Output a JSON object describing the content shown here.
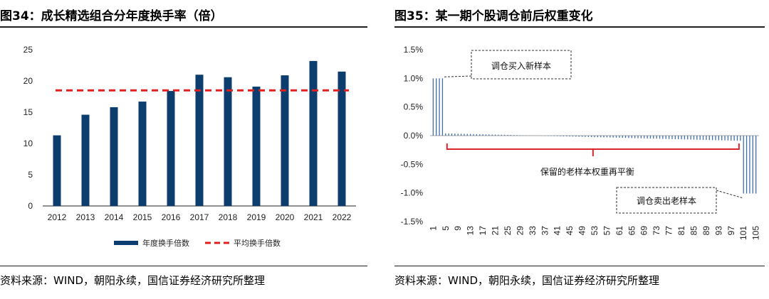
{
  "left_panel": {
    "title": "图34：成长精选组合分年度换手率（倍）",
    "source": "资料来源：WIND，朝阳永续，国信证券经济研究所整理"
  },
  "right_panel": {
    "title": "图35：某一期个股调仓前后权重变化",
    "source": "资料来源：WIND，朝阳永续，国信证券经济研究所整理"
  },
  "chart_data": [
    {
      "type": "bar",
      "title": "成长精选组合分年度换手率（倍）",
      "categories": [
        "2012",
        "2013",
        "2014",
        "2015",
        "2016",
        "2017",
        "2018",
        "2019",
        "2020",
        "2021",
        "2022"
      ],
      "series": [
        {
          "name": "年度换手倍数",
          "values": [
            11.3,
            14.6,
            15.8,
            16.7,
            18.4,
            21.0,
            20.6,
            19.1,
            20.9,
            23.2,
            21.5
          ],
          "color": "#0b3d6e"
        },
        {
          "name": "平均换手倍数",
          "type": "line",
          "value": 18.5,
          "color": "#e0201e"
        }
      ],
      "yticks": [
        "0",
        "5",
        "10",
        "15",
        "20",
        "25"
      ],
      "ylim": [
        0,
        25
      ],
      "legend": "bottom"
    },
    {
      "type": "bar",
      "title": "某一期个股调仓前后权重变化",
      "n_stocks": 105,
      "x_ticks": [
        "1",
        "5",
        "9",
        "13",
        "17",
        "21",
        "25",
        "29",
        "33",
        "37",
        "41",
        "45",
        "49",
        "53",
        "57",
        "61",
        "65",
        "69",
        "73",
        "77",
        "81",
        "85",
        "89",
        "93",
        "97",
        "101",
        "105"
      ],
      "yticks": [
        "1.5%",
        "1.0%",
        "0.5%",
        "0.0%",
        "-0.5%",
        "-1.0%",
        "-1.5%"
      ],
      "ylim": [
        -0.015,
        0.015
      ],
      "bought_value": 0.01,
      "retained_start": 0.0004,
      "retained_end": -0.0009,
      "sold_value": -0.0101,
      "bought_count": 4,
      "sold_count": 5,
      "color": "#3f6fa8",
      "annotations": {
        "bought": "调仓买入新样本",
        "retained": "保留的老样本权重再平衡",
        "sold": "调仓卖出老样本"
      }
    }
  ]
}
